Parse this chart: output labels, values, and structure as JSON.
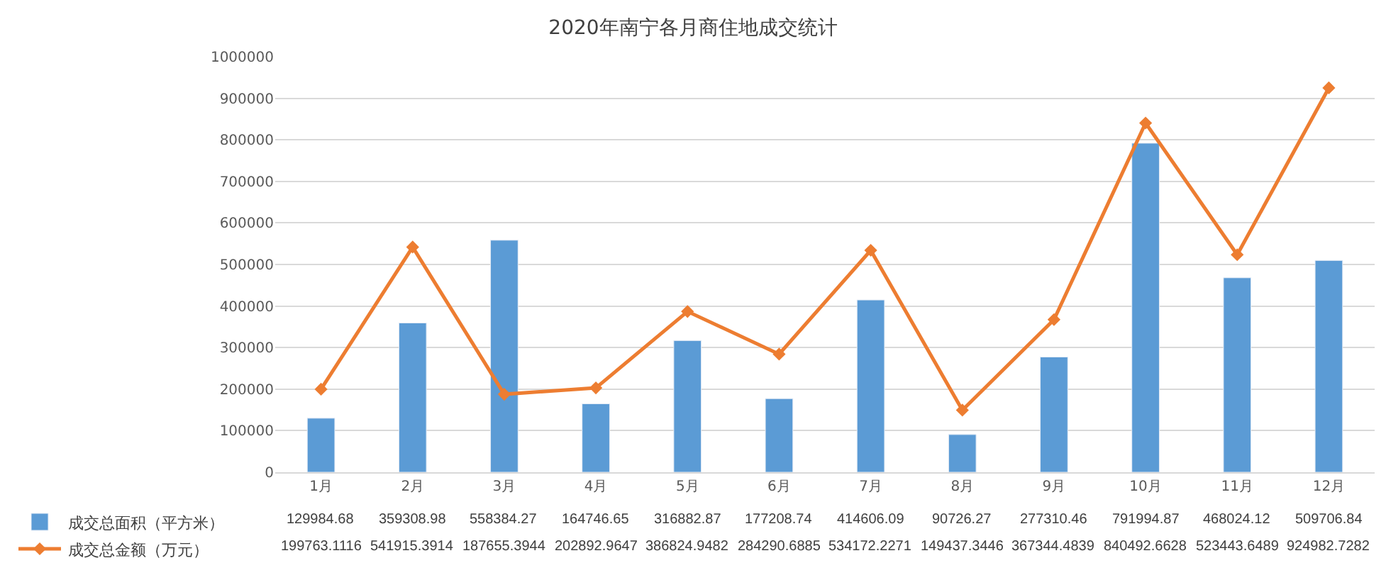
{
  "chart_data": {
    "type": "bar",
    "title": "2020年南宁各月商住地成交统计",
    "categories": [
      "1月",
      "2月",
      "3月",
      "4月",
      "5月",
      "6月",
      "7月",
      "8月",
      "9月",
      "10月",
      "11月",
      "12月"
    ],
    "series": [
      {
        "name": "成交总面积（平方米）",
        "color": "#5b9bd5",
        "values": [
          129984.68,
          359308.98,
          558384.27,
          164746.65,
          316882.87,
          177208.74,
          414606.09,
          90726.27,
          277310.46,
          791994.87,
          468024.12,
          509706.84
        ]
      },
      {
        "name": "成交总金额（万元）",
        "type": "line",
        "color": "#ed7d31",
        "marker": "diamond",
        "values": [
          199763.1116,
          541915.3914,
          187655.3944,
          202892.9647,
          386824.9482,
          284290.6885,
          534172.2271,
          149437.3446,
          367344.4839,
          840492.6628,
          523443.6489,
          924982.7282
        ]
      }
    ],
    "ylim": [
      0,
      1000000
    ],
    "yticks": [
      0,
      100000,
      200000,
      300000,
      400000,
      500000,
      600000,
      700000,
      800000,
      900000,
      1000000
    ],
    "grid": "y",
    "legend": "bottom",
    "data_labels": true
  }
}
